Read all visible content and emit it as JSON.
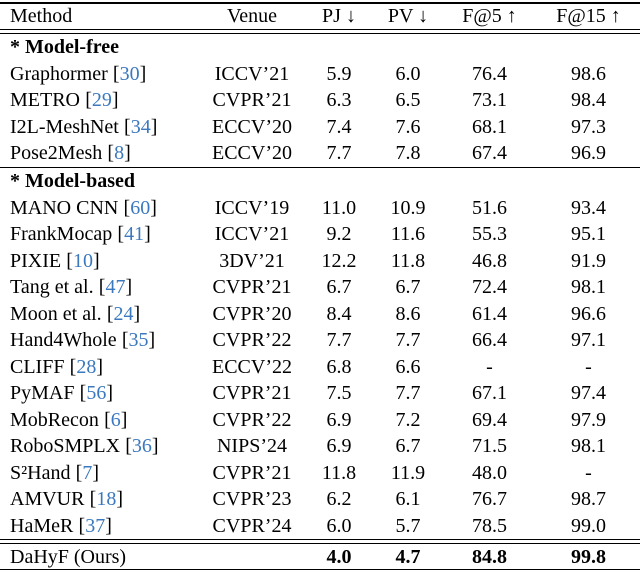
{
  "table": {
    "accent_citation_color": "#3b78be",
    "header": {
      "method": "Method",
      "venue": "Venue",
      "pj": "PJ ↓",
      "pv": "PV ↓",
      "f5": "F@5 ↑",
      "f15": "F@15 ↑"
    },
    "sections": {
      "model_free": "* Model-free",
      "model_based": "* Model-based"
    },
    "rows": [
      {
        "method": "Graphormer",
        "ob": "[",
        "cite": "30",
        "cb": "]",
        "venue": "ICCV’21",
        "pj": "5.9",
        "pv": "6.0",
        "f5": "76.4",
        "f15": "98.6"
      },
      {
        "method": "METRO",
        "ob": "[",
        "cite": "29",
        "cb": "]",
        "venue": "CVPR’21",
        "pj": "6.3",
        "pv": "6.5",
        "f5": "73.1",
        "f15": "98.4"
      },
      {
        "method": "I2L-MeshNet",
        "ob": "[",
        "cite": "34",
        "cb": "]",
        "venue": "ECCV’20",
        "pj": "7.4",
        "pv": "7.6",
        "f5": "68.1",
        "f15": "97.3"
      },
      {
        "method": "Pose2Mesh",
        "ob": "[",
        "cite": "8",
        "cb": "]",
        "venue": "ECCV’20",
        "pj": "7.7",
        "pv": "7.8",
        "f5": "67.4",
        "f15": "96.9"
      },
      {
        "method": "MANO CNN",
        "ob": "[",
        "cite": "60",
        "cb": "]",
        "venue": "ICCV’19",
        "pj": "11.0",
        "pv": "10.9",
        "f5": "51.6",
        "f15": "93.4"
      },
      {
        "method": "FrankMocap",
        "ob": "[",
        "cite": "41",
        "cb": "]",
        "venue": "ICCV’21",
        "pj": "9.2",
        "pv": "11.6",
        "f5": "55.3",
        "f15": "95.1"
      },
      {
        "method": "PIXIE",
        "ob": "[",
        "cite": "10",
        "cb": "]",
        "venue": "3DV’21",
        "pj": "12.2",
        "pv": "11.8",
        "f5": "46.8",
        "f15": "91.9"
      },
      {
        "method": "Tang et al.",
        "ob": "[",
        "cite": "47",
        "cb": "]",
        "venue": "CVPR’21",
        "pj": "6.7",
        "pv": "6.7",
        "f5": "72.4",
        "f15": "98.1"
      },
      {
        "method": "Moon et al.",
        "ob": "[",
        "cite": "24",
        "cb": "]",
        "venue": "CVPR’20",
        "pj": "8.4",
        "pv": "8.6",
        "f5": "61.4",
        "f15": "96.6"
      },
      {
        "method": "Hand4Whole",
        "ob": "[",
        "cite": "35",
        "cb": "]",
        "venue": "CVPR’22",
        "pj": "7.7",
        "pv": "7.7",
        "f5": "66.4",
        "f15": "97.1"
      },
      {
        "method": "CLIFF",
        "ob": "[",
        "cite": "28",
        "cb": "]",
        "venue": "ECCV’22",
        "pj": "6.8",
        "pv": "6.6",
        "f5": "-",
        "f15": "-"
      },
      {
        "method": "PyMAF",
        "ob": "[",
        "cite": "56",
        "cb": "]",
        "venue": "CVPR’21",
        "pj": "7.5",
        "pv": "7.7",
        "f5": "67.1",
        "f15": "97.4"
      },
      {
        "method": "MobRecon",
        "ob": "[",
        "cite": "6",
        "cb": "]",
        "venue": "CVPR’22",
        "pj": "6.9",
        "pv": "7.2",
        "f5": "69.4",
        "f15": "97.9"
      },
      {
        "method": "RoboSMPLX",
        "ob": "[",
        "cite": "36",
        "cb": "]",
        "venue": "NIPS’24",
        "pj": "6.9",
        "pv": "6.7",
        "f5": "71.5",
        "f15": "98.1"
      },
      {
        "method": "S²Hand",
        "ob": "[",
        "cite": "7",
        "cb": "]",
        "venue": "CVPR’21",
        "pj": "11.8",
        "pv": "11.9",
        "f5": "48.0",
        "f15": "-"
      },
      {
        "method": "AMVUR",
        "ob": "[",
        "cite": "18",
        "cb": "]",
        "venue": "CVPR’23",
        "pj": "6.2",
        "pv": "6.1",
        "f5": "76.7",
        "f15": "98.7"
      },
      {
        "method": "HaMeR",
        "ob": "[",
        "cite": "37",
        "cb": "]",
        "venue": "CVPR’24",
        "pj": "6.0",
        "pv": "5.7",
        "f5": "78.5",
        "f15": "99.0"
      }
    ],
    "ours": {
      "method": "DaHyF (Ours)",
      "venue": "",
      "pj": "4.0",
      "pv": "4.7",
      "f5": "84.8",
      "f15": "99.8"
    }
  }
}
